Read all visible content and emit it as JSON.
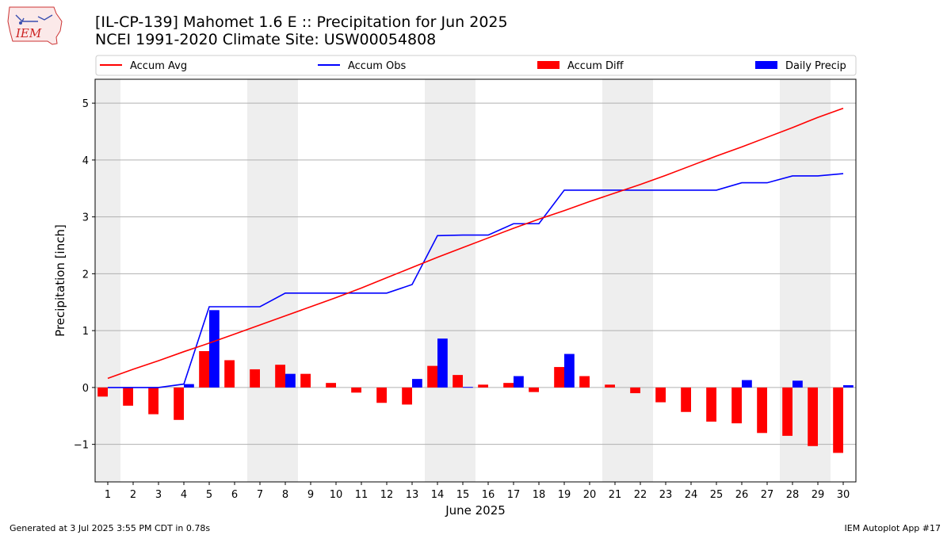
{
  "header": {
    "title_line1": "[IL-CP-139] Mahomet 1.6 E :: Precipitation for Jun 2025",
    "title_line2": "NCEI 1991-2020 Climate Site: USW00054808",
    "logo_text": "IEM"
  },
  "footer": {
    "generated": "Generated at 3 Jul 2025 3:55 PM CDT in 0.78s",
    "app": "IEM Autoplot App #17"
  },
  "chart_data": {
    "type": "bar",
    "xlabel": "June 2025",
    "ylabel": "Precipitation [inch]",
    "x": [
      1,
      2,
      3,
      4,
      5,
      6,
      7,
      8,
      9,
      10,
      11,
      12,
      13,
      14,
      15,
      16,
      17,
      18,
      19,
      20,
      21,
      22,
      23,
      24,
      25,
      26,
      27,
      28,
      29,
      30
    ],
    "xlim": [
      0.5,
      30.5
    ],
    "ylim": [
      -1.66,
      5.42
    ],
    "yticks": [
      -1,
      0,
      1,
      2,
      3,
      4,
      5
    ],
    "grid": "horizontal",
    "weekend_shading": [
      [
        0.5,
        1.5
      ],
      [
        6.5,
        8.5
      ],
      [
        13.5,
        15.5
      ],
      [
        20.5,
        22.5
      ],
      [
        27.5,
        29.5
      ]
    ],
    "legend": {
      "placement": "top",
      "entries": [
        {
          "label": "Accum Avg",
          "kind": "line",
          "color": "#ff0000"
        },
        {
          "label": "Accum Obs",
          "kind": "line",
          "color": "#0000ff"
        },
        {
          "label": "Accum Diff",
          "kind": "bar",
          "color": "#ff0000"
        },
        {
          "label": "Daily Precip",
          "kind": "bar",
          "color": "#0000ff"
        }
      ]
    },
    "series": [
      {
        "name": "Accum Avg",
        "type": "line",
        "color": "#ff0000",
        "values": [
          0.16,
          0.32,
          0.47,
          0.63,
          0.78,
          0.94,
          1.1,
          1.26,
          1.42,
          1.58,
          1.75,
          1.93,
          2.11,
          2.29,
          2.46,
          2.63,
          2.8,
          2.96,
          3.11,
          3.27,
          3.42,
          3.57,
          3.73,
          3.9,
          4.07,
          4.23,
          4.4,
          4.57,
          4.75,
          4.91
        ]
      },
      {
        "name": "Accum Obs",
        "type": "line",
        "color": "#0000ff",
        "values": [
          0.0,
          0.0,
          0.0,
          0.06,
          1.42,
          1.42,
          1.42,
          1.66,
          1.66,
          1.66,
          1.66,
          1.66,
          1.81,
          2.67,
          2.68,
          2.68,
          2.88,
          2.88,
          3.47,
          3.47,
          3.47,
          3.47,
          3.47,
          3.47,
          3.47,
          3.6,
          3.6,
          3.72,
          3.72,
          3.76
        ]
      },
      {
        "name": "Accum Diff",
        "type": "bar",
        "color": "#ff0000",
        "values": [
          -0.16,
          -0.32,
          -0.47,
          -0.57,
          0.64,
          0.48,
          0.32,
          0.4,
          0.24,
          0.08,
          -0.09,
          -0.27,
          -0.3,
          0.38,
          0.22,
          0.05,
          0.08,
          -0.08,
          0.36,
          0.2,
          0.05,
          -0.1,
          -0.26,
          -0.43,
          -0.6,
          -0.63,
          -0.8,
          -0.85,
          -1.03,
          -1.15
        ]
      },
      {
        "name": "Daily Precip",
        "type": "bar",
        "color": "#0000ff",
        "values": [
          0,
          0,
          0,
          0.06,
          1.36,
          0,
          0,
          0.24,
          0,
          0,
          0,
          0,
          0.15,
          0.86,
          0.01,
          0,
          0.2,
          0,
          0.59,
          0,
          0,
          0,
          0,
          0,
          0,
          0.13,
          0,
          0.12,
          0,
          0.04
        ]
      }
    ]
  }
}
